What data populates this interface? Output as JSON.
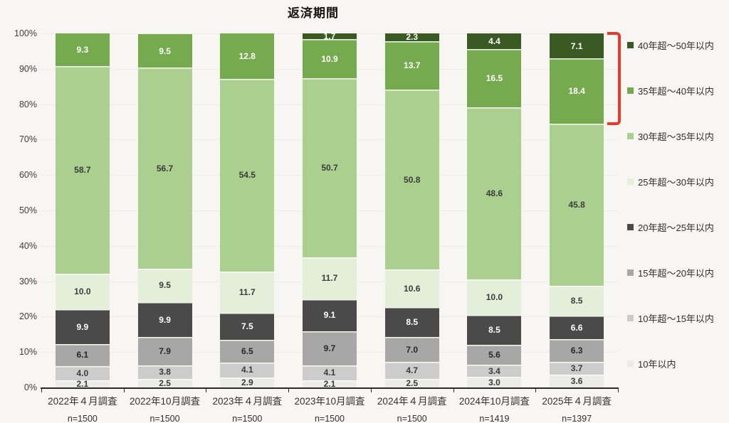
{
  "title": "返済期間",
  "y_axis": {
    "ticks": [
      "0%",
      "10%",
      "20%",
      "30%",
      "40%",
      "50%",
      "60%",
      "70%",
      "80%",
      "90%",
      "100%"
    ]
  },
  "chart_data": {
    "type": "bar",
    "stacked": true,
    "unit": "%",
    "ylim": [
      0,
      100
    ],
    "grid": "horizontal",
    "legend_position": "right",
    "title": "返済期間",
    "categories": [
      "2022年４月調査",
      "2022年10月調査",
      "2023年４月調査",
      "2023年10月調査",
      "2024年４月調査",
      "2024年10月調査",
      "2025年４月調査"
    ],
    "sample_sizes": [
      "n=1500",
      "n=1500",
      "n=1500",
      "n=1500",
      "n=1500",
      "n=1419",
      "n=1397"
    ],
    "series_bottom_to_top": [
      {
        "name": "10年以内",
        "color": "#ebebe8",
        "label_color": "#3b3b3b",
        "values": [
          2.1,
          2.5,
          2.9,
          2.1,
          2.5,
          3.0,
          3.6
        ]
      },
      {
        "name": "10年超～15年以内",
        "color": "#cccccc",
        "label_color": "#3b3b3b",
        "values": [
          4.0,
          3.8,
          4.1,
          4.1,
          4.7,
          3.4,
          3.7
        ]
      },
      {
        "name": "15年超～20年以内",
        "color": "#a7a7a7",
        "label_color": "#262626",
        "values": [
          6.1,
          7.9,
          6.5,
          9.7,
          7.0,
          5.6,
          6.3
        ]
      },
      {
        "name": "20年超～25年以内",
        "color": "#4a4a4a",
        "label_color": "#ffffff",
        "values": [
          9.9,
          9.9,
          7.5,
          9.1,
          8.5,
          8.5,
          6.6
        ]
      },
      {
        "name": "25年超～30年以内",
        "color": "#e3efd8",
        "label_color": "#3b3b3b",
        "values": [
          10.0,
          9.5,
          11.7,
          11.7,
          10.6,
          10.0,
          8.5
        ]
      },
      {
        "name": "30年超～35年以内",
        "color": "#aacf8e",
        "label_color": "#3b3b3b",
        "values": [
          58.7,
          56.7,
          54.5,
          50.7,
          50.8,
          48.6,
          45.8
        ]
      },
      {
        "name": "35年超～40年以内",
        "color": "#75aa4f",
        "label_color": "#ffffff",
        "values": [
          9.3,
          9.5,
          12.8,
          10.9,
          13.7,
          16.5,
          18.4
        ]
      },
      {
        "name": "40年超～50年以内",
        "color": "#3a5a23",
        "label_color": "#ffffff",
        "values": [
          null,
          null,
          null,
          1.7,
          2.3,
          4.4,
          7.1
        ]
      }
    ],
    "annotation": {
      "bracket": {
        "color": "#e7392e",
        "category": "2025年４月調査",
        "series_covered": [
          "40年超～50年以内",
          "35年超～40年以内"
        ],
        "covered_total": 25.5
      }
    }
  },
  "legend": {
    "items": [
      {
        "label": "40年超～50年以内",
        "color": "#3a5a23"
      },
      {
        "label": "35年超～40年以内",
        "color": "#75aa4f"
      },
      {
        "label": "30年超～35年以内",
        "color": "#aacf8e"
      },
      {
        "label": "25年超～30年以内",
        "color": "#e3efd8"
      },
      {
        "label": "20年超～25年以内",
        "color": "#4a4a4a"
      },
      {
        "label": "15年超～20年以内",
        "color": "#a7a7a7"
      },
      {
        "label": "10年超～15年以内",
        "color": "#cccccc"
      },
      {
        "label": "10年以内",
        "color": "#ebebe8"
      }
    ]
  }
}
